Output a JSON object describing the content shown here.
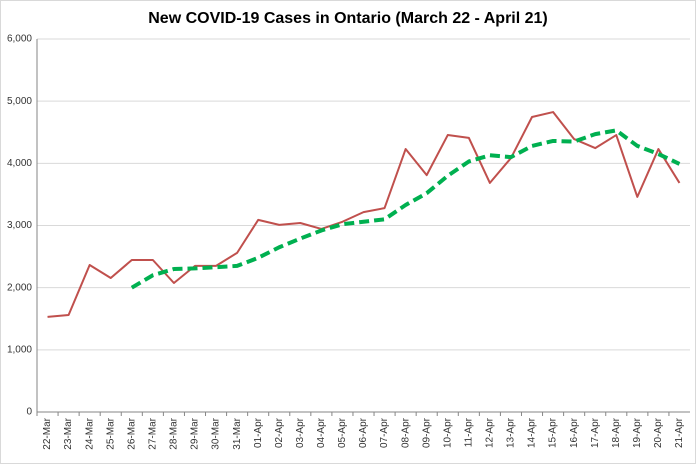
{
  "chart_data": {
    "type": "line",
    "title": "New COVID-19 Cases in Ontario (March 22 - April 21)",
    "categories": [
      "22-Mar",
      "23-Mar",
      "24-Mar",
      "25-Mar",
      "26-Mar",
      "27-Mar",
      "28-Mar",
      "29-Mar",
      "30-Mar",
      "31-Mar",
      "01-Apr",
      "02-Apr",
      "03-Apr",
      "04-Apr",
      "05-Apr",
      "06-Apr",
      "07-Apr",
      "08-Apr",
      "09-Apr",
      "10-Apr",
      "11-Apr",
      "12-Apr",
      "13-Apr",
      "14-Apr",
      "15-Apr",
      "16-Apr",
      "17-Apr",
      "18-Apr",
      "19-Apr",
      "20-Apr",
      "21-Apr"
    ],
    "series": [
      {
        "color": "#c0504d",
        "dashed": false,
        "values": [
          1530,
          1560,
          2365,
          2155,
          2445,
          2445,
          2075,
          2350,
          2350,
          2560,
          3090,
          3010,
          3040,
          2945,
          3060,
          3215,
          3280,
          4230,
          3810,
          4455,
          4410,
          3685,
          4085,
          4745,
          4825,
          4390,
          4245,
          4455,
          3460,
          4230,
          3685
        ]
      },
      {
        "color": "#00b050",
        "dashed": true,
        "values": [
          null,
          null,
          null,
          null,
          2000,
          2200,
          2300,
          2310,
          2330,
          2350,
          2480,
          2650,
          2790,
          2920,
          3020,
          3060,
          3100,
          3330,
          3520,
          3800,
          4030,
          4130,
          4100,
          4280,
          4360,
          4350,
          4470,
          4530,
          4280,
          4150,
          3990
        ]
      }
    ],
    "ylim": [
      0,
      6000
    ],
    "yticks": [
      0,
      {
        "value": 1000,
        "label": "1,000"
      },
      {
        "value": 2000,
        "label": "2,000"
      },
      {
        "value": 3000,
        "label": "3,000"
      },
      {
        "value": 4000,
        "label": "4,000"
      },
      {
        "value": 5000,
        "label": "5,000"
      },
      {
        "value": 6000,
        "label": "6,000"
      }
    ],
    "grid": true
  }
}
